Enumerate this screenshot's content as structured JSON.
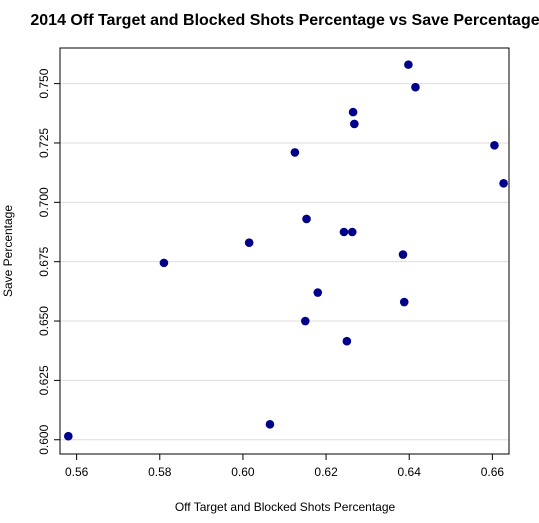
{
  "chart_data": {
    "type": "scatter",
    "title": "2014 Off Target and Blocked Shots Percentage vs Save Percentage",
    "xlabel": "Off Target and Blocked Shots Percentage",
    "ylabel": "Save Percentage",
    "xlim": [
      0.556,
      0.664
    ],
    "ylim": [
      0.594,
      0.765
    ],
    "x_ticks": [
      "0.56",
      "0.58",
      "0.60",
      "0.62",
      "0.64",
      "0.66"
    ],
    "y_ticks": [
      "0.600",
      "0.625",
      "0.650",
      "0.675",
      "0.700",
      "0.725",
      "0.750"
    ],
    "grid": "horizontal",
    "point_color": "#00008B",
    "series": [
      {
        "x": [
          0.558,
          0.581,
          0.6015,
          0.6065,
          0.6125,
          0.615,
          0.6153,
          0.618,
          0.6243,
          0.625,
          0.6263,
          0.6265,
          0.6268,
          0.6385,
          0.6388,
          0.6398,
          0.6415,
          0.6605,
          0.6627
        ],
        "y": [
          0.6015,
          0.6745,
          0.683,
          0.6065,
          0.721,
          0.65,
          0.693,
          0.662,
          0.6875,
          0.6415,
          0.6875,
          0.738,
          0.733,
          0.678,
          0.658,
          0.758,
          0.7485,
          0.724,
          0.708
        ]
      }
    ]
  }
}
